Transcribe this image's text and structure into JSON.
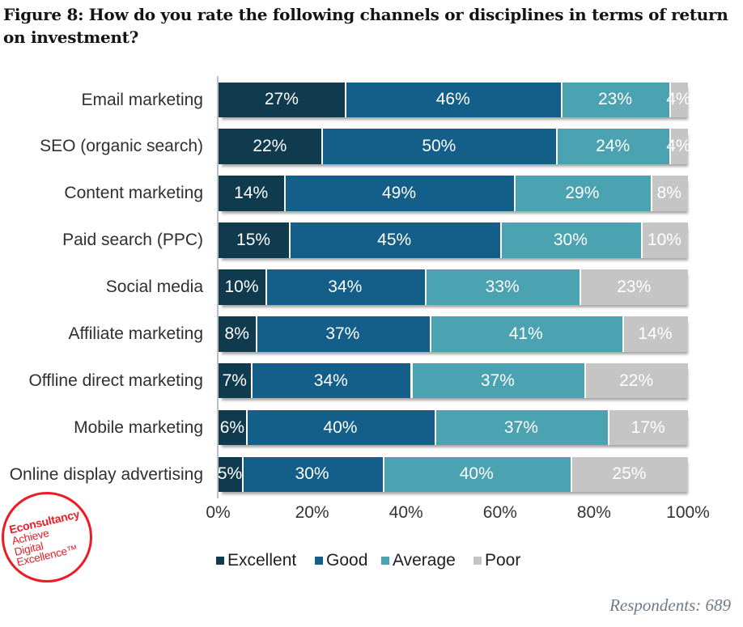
{
  "title": "Figure 8: How do you rate the following channels or disciplines in terms of return on investment?",
  "respondents_note": "Respondents: 689",
  "logo": {
    "brand": "Econsultancy",
    "tagline_lines": [
      "Achieve",
      "Digital",
      "Excellence™"
    ],
    "color": "#ed1b24"
  },
  "chart_data": {
    "type": "bar",
    "orientation": "horizontal",
    "stacked": true,
    "unit": "%",
    "title": "Figure 8: How do you rate the following channels or disciplines in terms of return on investment?",
    "categories": [
      "Email marketing",
      "SEO (organic search)",
      "Content marketing",
      "Paid search (PPC)",
      "Social media",
      "Affiliate marketing",
      "Offline direct marketing",
      "Mobile marketing",
      "Online display advertising"
    ],
    "series": [
      {
        "name": "Excellent",
        "color": "#103b4f",
        "values": [
          27,
          22,
          14,
          15,
          10,
          8,
          7,
          6,
          5
        ]
      },
      {
        "name": "Good",
        "color": "#145e8a",
        "values": [
          46,
          50,
          49,
          45,
          34,
          37,
          34,
          40,
          30
        ]
      },
      {
        "name": "Average",
        "color": "#4ba2b0",
        "values": [
          23,
          24,
          29,
          30,
          33,
          41,
          37,
          37,
          40
        ]
      },
      {
        "name": "Poor",
        "color": "#c5c5c5",
        "values": [
          4,
          4,
          8,
          10,
          23,
          14,
          22,
          17,
          25
        ]
      }
    ],
    "value_label_format": "{v}%",
    "x_ticks": [
      "0%",
      "20%",
      "40%",
      "60%",
      "80%",
      "100%"
    ],
    "xlim": [
      0,
      100
    ],
    "grid": false,
    "legend_position": "bottom"
  }
}
